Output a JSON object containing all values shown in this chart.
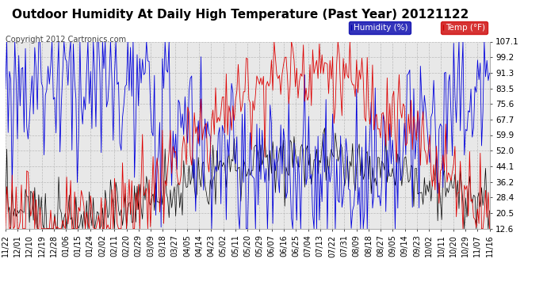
{
  "title": "Outdoor Humidity At Daily High Temperature (Past Year) 20121122",
  "copyright": "Copyright 2012 Cartronics.com",
  "legend_labels": [
    "Humidity (%)",
    "Temp (°F)"
  ],
  "legend_colors": [
    "#0000bb",
    "#cc0000"
  ],
  "legend_bg_humidity": "#0000aa",
  "legend_bg_temp": "#cc0000",
  "line_humidity_color": "#0000dd",
  "line_temp_color": "#dd0000",
  "line_dew_color": "#000000",
  "yticks": [
    12.6,
    20.5,
    28.4,
    36.2,
    44.1,
    52.0,
    59.9,
    67.7,
    75.6,
    83.5,
    91.3,
    99.2,
    107.1
  ],
  "xtick_labels": [
    "11/22",
    "12/01",
    "12/10",
    "12/19",
    "12/28",
    "01/06",
    "01/15",
    "01/24",
    "02/02",
    "02/11",
    "02/20",
    "02/29",
    "03/09",
    "03/18",
    "03/27",
    "04/05",
    "04/14",
    "04/23",
    "05/02",
    "05/11",
    "05/20",
    "05/29",
    "06/07",
    "06/16",
    "06/25",
    "07/04",
    "07/13",
    "07/22",
    "07/31",
    "08/09",
    "08/18",
    "08/27",
    "09/05",
    "09/14",
    "09/23",
    "10/02",
    "10/11",
    "10/20",
    "10/29",
    "11/07",
    "11/16"
  ],
  "bg_color": "#ffffff",
  "plot_bg_color": "#e8e8e8",
  "grid_color": "#bbbbbb",
  "title_fontsize": 11,
  "copyright_fontsize": 7,
  "tick_fontsize": 7.5
}
